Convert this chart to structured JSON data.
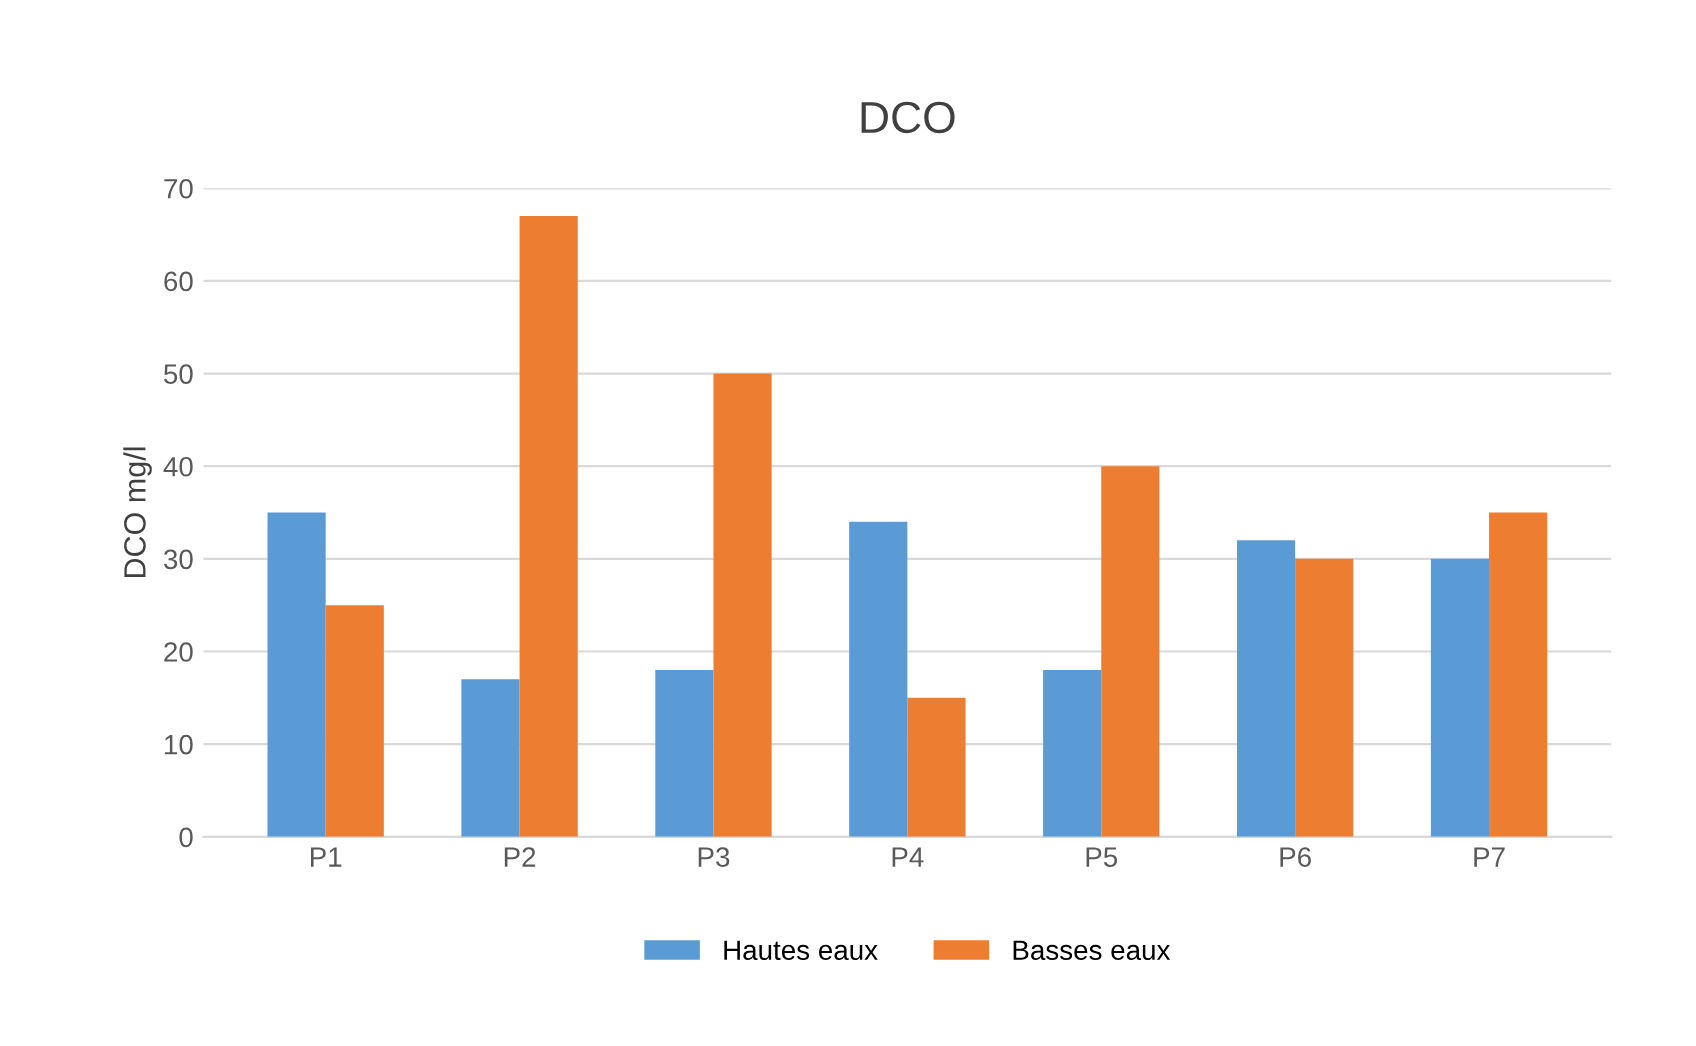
{
  "chart_data": {
    "type": "bar",
    "title": "DCO",
    "ylabel": "DCO mg/l",
    "categories": [
      "P1",
      "P2",
      "P3",
      "P4",
      "P5",
      "P6",
      "P7"
    ],
    "series": [
      {
        "name": "Hautes eaux",
        "color": "#5b9bd5",
        "values": [
          35,
          17,
          18,
          34,
          18,
          32,
          30
        ]
      },
      {
        "name": "Basses eaux",
        "color": "#ed7d31",
        "values": [
          25,
          67,
          50,
          15,
          40,
          30,
          35
        ]
      }
    ],
    "ylim": [
      0,
      70
    ],
    "yticks": [
      0,
      10,
      20,
      30,
      40,
      50,
      60,
      70
    ],
    "grid": "y",
    "legend": "bottom"
  }
}
